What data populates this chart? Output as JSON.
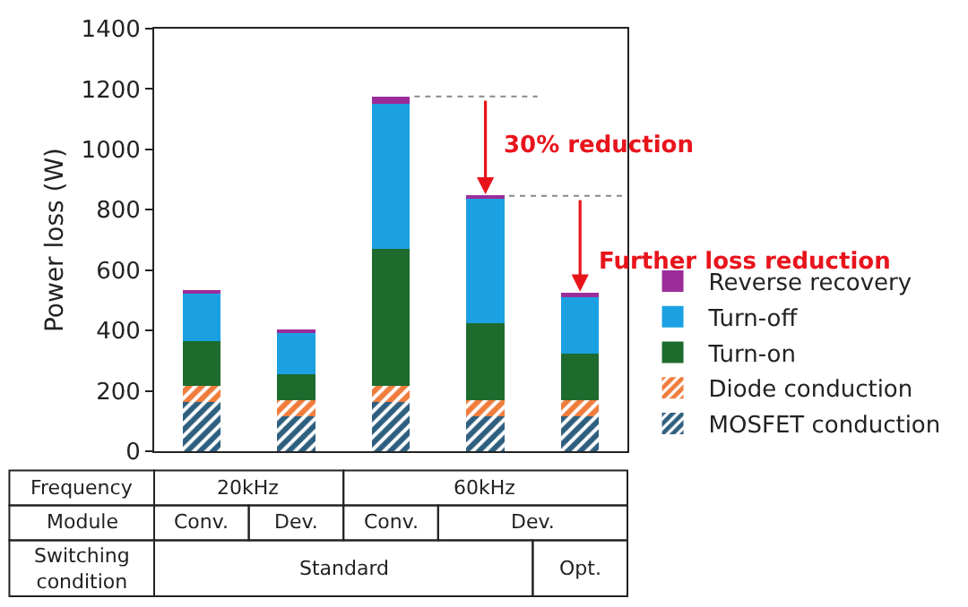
{
  "chart_data": {
    "type": "bar",
    "stacked": true,
    "ylabel": "Power loss (W)",
    "categories": [
      null,
      null,
      null,
      null,
      null
    ],
    "series": [
      {
        "name": "MOSFET conduction",
        "color": "#2e5f7f",
        "values": [
          162,
          116,
          162,
          116,
          116
        ]
      },
      {
        "name": "Diode conduction",
        "color": "#f07c3c",
        "values": [
          54,
          54,
          54,
          54,
          54
        ]
      },
      {
        "name": "Turn-on",
        "color": "#1e6b2e",
        "values": [
          148,
          84,
          453,
          254,
          152
        ]
      },
      {
        "name": "Turn-off",
        "color": "#1ba1e2",
        "values": [
          160,
          139,
          481,
          414,
          192
        ]
      },
      {
        "name": "Reverse recovery",
        "color": "#9b2d9b",
        "values": [
          8,
          8,
          25,
          8,
          10
        ]
      }
    ],
    "ylim": [
      0,
      1400
    ],
    "yticks": [
      0,
      200,
      400,
      600,
      800,
      1000,
      1200,
      1400
    ],
    "ref_lines": [
      {
        "axis": "y",
        "value": 1175,
        "color": "#888888",
        "line_style": "dotted"
      },
      {
        "axis": "y",
        "value": 846,
        "color": "#888888",
        "line_style": "dotted"
      }
    ],
    "grid": false,
    "legend": "right",
    "tick_labels": "y",
    "annotations": [
      "30% reduction",
      "Further loss reduction",
      "Frequency",
      "20kHz",
      "60kHz",
      "Module",
      "Conv.",
      "Dev.",
      "Conv.",
      "Dev.",
      "Switching condition",
      "Standard",
      "Opt."
    ]
  }
}
